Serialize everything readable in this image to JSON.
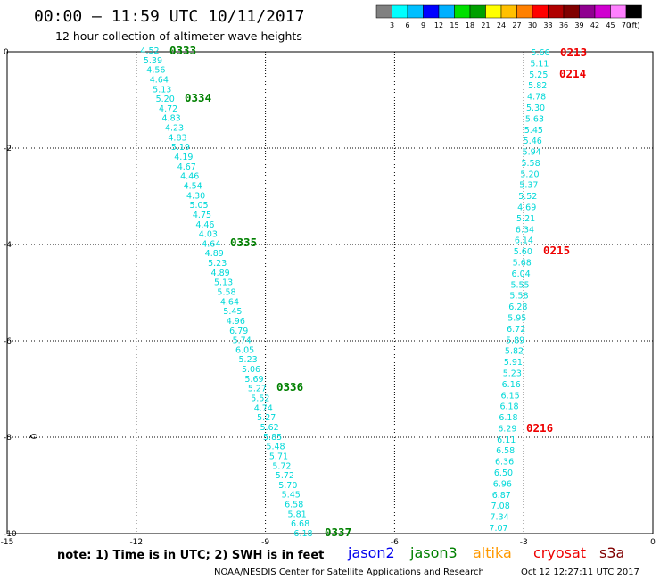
{
  "header": {
    "title": "00:00 – 11:59 UTC 10/11/2017",
    "subtitle": "12 hour collection of altimeter wave heights"
  },
  "legend": {
    "colors": [
      "#808080",
      "#00ffff",
      "#00bfff",
      "#0000ff",
      "#00b0ff",
      "#00e000",
      "#00a000",
      "#ffff00",
      "#ffc000",
      "#ff8000",
      "#ff0000",
      "#b00000",
      "#800000",
      "#900090",
      "#d000d0",
      "#ff80ff",
      "#000000"
    ],
    "labels": [
      "3",
      "6",
      "9",
      "12",
      "15",
      "18",
      "21",
      "24",
      "27",
      "30",
      "33",
      "36",
      "39",
      "42",
      "45",
      "70",
      "(ft)"
    ]
  },
  "axes": {
    "x_ticks": [
      "-15",
      "-12",
      "-9",
      "-6",
      "-3",
      "0"
    ],
    "y_ticks": [
      "0",
      "-2",
      "-4",
      "-6",
      "-8",
      "-10"
    ]
  },
  "tracks": [
    {
      "name": "jason3-track-west",
      "values": [
        "4.52",
        "5.39",
        "4.56",
        "4.64",
        "5.13",
        "5.20",
        "4.72",
        "4.83",
        "4.23",
        "4.83",
        "5.19",
        "4.19",
        "4.67",
        "4.46",
        "4.54",
        "4.30",
        "5.05",
        "4.75",
        "4.46",
        "4.03",
        "4.64",
        "4.89",
        "5.23",
        "4.89",
        "5.13",
        "5.58",
        "4.64",
        "5.45",
        "4.96",
        "6.79",
        "5.74",
        "6.05",
        "5.23",
        "5.06",
        "5.69",
        "5.27",
        "5.52",
        "4.74",
        "5.27",
        "5.62",
        "5.85",
        "5.48",
        "5.71",
        "5.72",
        "5.72",
        "5.70",
        "5.45",
        "6.58",
        "5.81",
        "6.68",
        "6.18"
      ]
    },
    {
      "name": "cryosat-track-east",
      "values": [
        "5.66",
        "5.11",
        "5.25",
        "5.82",
        "4.78",
        "5.30",
        "5.63",
        "5.45",
        "5.46",
        "5.94",
        "5.58",
        "5.20",
        "5.37",
        "5.52",
        "4.69",
        "5.21",
        "6.34",
        "6.14",
        "5.60",
        "5.68",
        "6.04",
        "5.55",
        "5.58",
        "6.28",
        "5.95",
        "6.72",
        "5.89",
        "5.82",
        "5.91",
        "5.23",
        "6.16",
        "6.15",
        "6.18",
        "6.18",
        "6.29",
        "6.11",
        "6.58",
        "6.36",
        "6.50",
        "6.96",
        "6.87",
        "7.08",
        "7.34",
        "7.07"
      ]
    }
  ],
  "passes": [
    {
      "label": "0333",
      "color": "#008000"
    },
    {
      "label": "0334",
      "color": "#008000"
    },
    {
      "label": "0335",
      "color": "#008000"
    },
    {
      "label": "0336",
      "color": "#008000"
    },
    {
      "label": "0337",
      "color": "#008000"
    },
    {
      "label": "0213",
      "color": "#ee0000"
    },
    {
      "label": "0214",
      "color": "#ee0000"
    },
    {
      "label": "0215",
      "color": "#ee0000"
    },
    {
      "label": "0216",
      "color": "#ee0000"
    }
  ],
  "footer": {
    "note": "note:  1) Time is in UTC;  2) SWH is in feet",
    "satellites": [
      {
        "name": "jason2",
        "color": "#0000ee"
      },
      {
        "name": "jason3",
        "color": "#008000"
      },
      {
        "name": "altika",
        "color": "#ff9900"
      },
      {
        "name": "cryosat",
        "color": "#ee0000"
      },
      {
        "name": "s3a",
        "color": "#800000"
      }
    ],
    "credit": "NOAA/NESDIS Center for Satellite Applications and Research",
    "timestamp": "Oct 12 12:27:11 UTC 2017"
  },
  "cyan_color": "#00d8d8"
}
